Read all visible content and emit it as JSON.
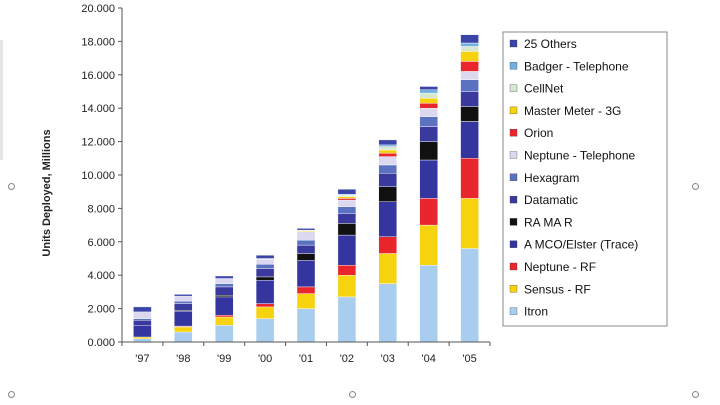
{
  "chart_data": {
    "type": "bar",
    "stacked": true,
    "title": "",
    "xlabel": "",
    "ylabel": "Units Deployed, Millions",
    "ylim": [
      0,
      20
    ],
    "yticks": [
      "0.000",
      "2.000",
      "4.000",
      "6.000",
      "8.000",
      "10.000",
      "12.000",
      "14.000",
      "16.000",
      "18.000",
      "20.000"
    ],
    "grid": false,
    "legend": "right",
    "categories": [
      "'97",
      "'98",
      "'99",
      "'00",
      "'01",
      "'02",
      "'03",
      "'04",
      "'05"
    ],
    "series": [
      {
        "name": "Itron",
        "color": "#a9cdef",
        "values": [
          0.2,
          0.6,
          1.0,
          1.4,
          2.0,
          2.7,
          3.5,
          4.6,
          5.6
        ]
      },
      {
        "name": "Sensus - RF",
        "color": "#f6d20f",
        "values": [
          0.1,
          0.3,
          0.5,
          0.7,
          0.9,
          1.3,
          1.8,
          2.4,
          3.0
        ]
      },
      {
        "name": "Neptune - RF",
        "color": "#e8262b",
        "values": [
          0.0,
          0.05,
          0.1,
          0.2,
          0.4,
          0.6,
          1.0,
          1.6,
          2.4
        ]
      },
      {
        "name": "A MCO/Elster (Trace)",
        "color": "#3535a0",
        "values": [
          0.7,
          0.9,
          1.1,
          1.4,
          1.6,
          1.8,
          2.1,
          2.3,
          2.2
        ]
      },
      {
        "name": "RA MA R",
        "color": "#111111",
        "values": [
          0.0,
          0.05,
          0.1,
          0.2,
          0.4,
          0.7,
          0.9,
          1.1,
          0.9
        ]
      },
      {
        "name": "Datamatic",
        "color": "#3a3a9e",
        "values": [
          0.3,
          0.4,
          0.5,
          0.5,
          0.5,
          0.6,
          0.8,
          0.9,
          0.9
        ]
      },
      {
        "name": "Hexagram",
        "color": "#5b72c0",
        "values": [
          0.1,
          0.15,
          0.2,
          0.25,
          0.3,
          0.4,
          0.5,
          0.6,
          0.7
        ]
      },
      {
        "name": "Neptune - Telephone",
        "color": "#dcd8ef",
        "values": [
          0.4,
          0.3,
          0.3,
          0.3,
          0.5,
          0.4,
          0.5,
          0.5,
          0.5
        ]
      },
      {
        "name": "Orion",
        "color": "#e8262b",
        "values": [
          0.0,
          0.0,
          0.0,
          0.0,
          0.0,
          0.1,
          0.2,
          0.3,
          0.6
        ]
      },
      {
        "name": "Master Meter - 3G",
        "color": "#f6d20f",
        "values": [
          0.0,
          0.0,
          0.0,
          0.0,
          0.05,
          0.1,
          0.2,
          0.3,
          0.6
        ]
      },
      {
        "name": "CellNet",
        "color": "#d6e8d0",
        "values": [
          0.0,
          0.0,
          0.0,
          0.05,
          0.05,
          0.1,
          0.2,
          0.3,
          0.3
        ]
      },
      {
        "name": "Badger - Telephone",
        "color": "#6fb0e0",
        "values": [
          0.0,
          0.0,
          0.0,
          0.0,
          0.0,
          0.05,
          0.1,
          0.2,
          0.2
        ]
      },
      {
        "name": "25 Others",
        "color": "#3b44a8",
        "values": [
          0.3,
          0.1,
          0.15,
          0.2,
          0.1,
          0.3,
          0.3,
          0.2,
          0.5
        ]
      }
    ]
  }
}
